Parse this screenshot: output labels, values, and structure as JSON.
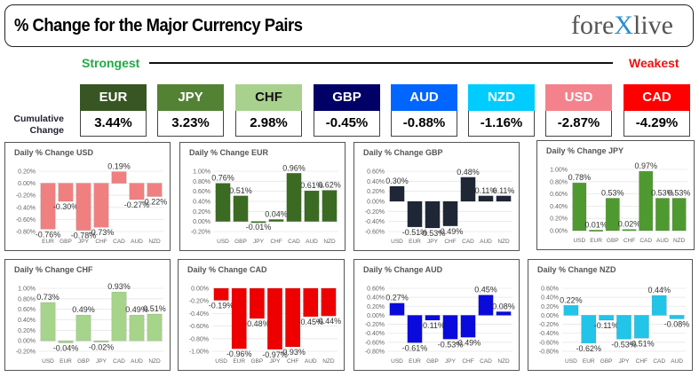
{
  "header": {
    "title": "% Change for the Major Currency Pairs",
    "logo": "forexlive"
  },
  "scale": {
    "strongest": "Strongest",
    "weakest": "Weakest",
    "cumulative_label": "Cumulative Change"
  },
  "currencies": [
    {
      "code": "EUR",
      "value": "3.44%",
      "color": "#375623"
    },
    {
      "code": "JPY",
      "value": "3.23%",
      "color": "#548235"
    },
    {
      "code": "CHF",
      "value": "2.98%",
      "color": "#a9d18e"
    },
    {
      "code": "GBP",
      "value": "-0.45%",
      "color": "#000066"
    },
    {
      "code": "AUD",
      "value": "-0.88%",
      "color": "#0066ff"
    },
    {
      "code": "NZD",
      "value": "-1.16%",
      "color": "#00ccff"
    },
    {
      "code": "USD",
      "value": "-2.87%",
      "color": "#f4828c"
    },
    {
      "code": "CAD",
      "value": "-4.29%",
      "color": "#ff0000"
    }
  ],
  "chart_data": [
    {
      "type": "bar",
      "title": "Daily % Change USD",
      "categories": [
        "EUR",
        "GBP",
        "JPY",
        "CHF",
        "CAD",
        "AUD",
        "NZD"
      ],
      "values": [
        -0.76,
        -0.3,
        -0.78,
        -0.73,
        0.19,
        -0.27,
        -0.22
      ],
      "ylim": [
        -0.8,
        0.2
      ],
      "ystep": 0.2,
      "color": "#f08080"
    },
    {
      "type": "bar",
      "title": "Daily % Change EUR",
      "categories": [
        "USD",
        "GBP",
        "JPY",
        "CHF",
        "CAD",
        "AUD",
        "NZD"
      ],
      "values": [
        0.76,
        0.51,
        -0.01,
        0.04,
        0.96,
        0.61,
        0.62
      ],
      "ylim": [
        -0.2,
        1.0
      ],
      "ystep": 0.2,
      "color": "#3b6b22"
    },
    {
      "type": "bar",
      "title": "Daily % Change GBP",
      "categories": [
        "USD",
        "EUR",
        "JPY",
        "CHF",
        "CAD",
        "AUD",
        "NZD"
      ],
      "values": [
        0.3,
        -0.51,
        -0.53,
        -0.49,
        0.48,
        0.11,
        0.11
      ],
      "ylim": [
        -0.6,
        0.6
      ],
      "ystep": 0.2,
      "color": "#1f2636"
    },
    {
      "type": "bar",
      "title": "Daily % Change JPY",
      "categories": [
        "USD",
        "EUR",
        "GBP",
        "CHF",
        "CAD",
        "AUD",
        "NZD"
      ],
      "values": [
        0.78,
        0.01,
        0.53,
        0.02,
        0.97,
        0.53,
        0.53
      ],
      "ylim": [
        0,
        1.0
      ],
      "ystep": 0.2,
      "color": "#4f9a30"
    },
    {
      "type": "bar",
      "title": "Daily % Change CHF",
      "categories": [
        "USD",
        "EUR",
        "GBP",
        "JPY",
        "CAD",
        "AUD",
        "NZD"
      ],
      "values": [
        0.73,
        -0.04,
        0.49,
        -0.02,
        0.93,
        0.49,
        0.51
      ],
      "ylim": [
        -0.2,
        1.0
      ],
      "ystep": 0.2,
      "color": "#a6d48a"
    },
    {
      "type": "bar",
      "title": "Daily % Change CAD",
      "categories": [
        "USD",
        "EUR",
        "GBP",
        "JPY",
        "CHF",
        "AUD",
        "NZD"
      ],
      "values": [
        -0.19,
        -0.96,
        -0.48,
        -0.97,
        -0.93,
        -0.45,
        -0.44
      ],
      "ylim": [
        -1.0,
        0
      ],
      "ystep": 0.2,
      "color": "#ee0000"
    },
    {
      "type": "bar",
      "title": "Daily % Change AUD",
      "categories": [
        "USD",
        "EUR",
        "GBP",
        "JPY",
        "CHF",
        "CAD",
        "NZD"
      ],
      "values": [
        0.27,
        -0.61,
        -0.11,
        -0.53,
        -0.49,
        0.45,
        0.08
      ],
      "ylim": [
        -0.8,
        0.6
      ],
      "ystep": 0.2,
      "color": "#0a0adc"
    },
    {
      "type": "bar",
      "title": "Daily % Change NZD",
      "categories": [
        "USD",
        "EUR",
        "GBP",
        "JPY",
        "CHF",
        "CAD",
        "AUD"
      ],
      "values": [
        0.22,
        -0.62,
        -0.11,
        -0.53,
        -0.51,
        0.44,
        -0.08
      ],
      "ylim": [
        -0.8,
        0.6
      ],
      "ystep": 0.2,
      "color": "#22c4e8"
    }
  ]
}
